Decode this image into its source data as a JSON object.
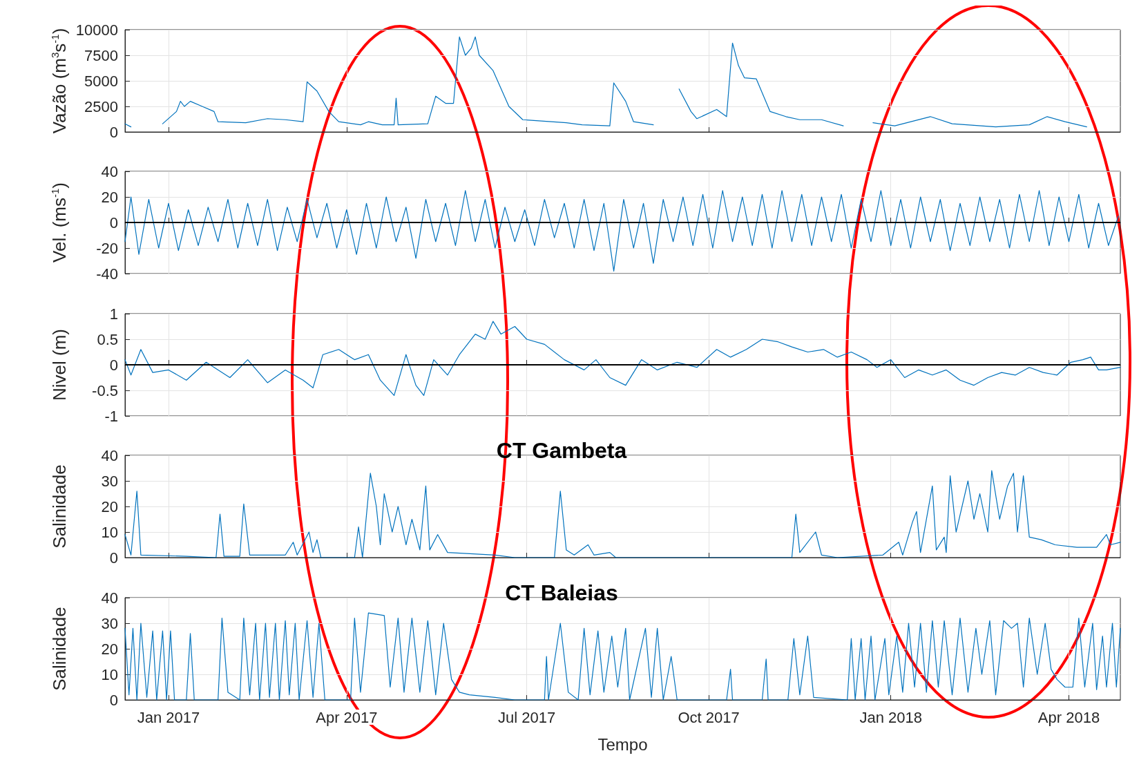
{
  "chart_data": [
    {
      "type": "line",
      "ylabel": "Vazão (m$^{3}$s$^{-1}$)",
      "xlim": [
        "2016-12-10",
        "2018-04-27"
      ],
      "xticks": [
        {
          "value": "2017-01-01",
          "label": null
        },
        {
          "value": "2017-04-01",
          "label": null
        },
        {
          "value": "2017-07-01",
          "label": null
        },
        {
          "value": "2017-10-01",
          "label": null
        },
        {
          "value": "2018-01-01",
          "label": null
        },
        {
          "value": "2018-04-01",
          "label": null
        }
      ],
      "ylim": [
        0,
        10000
      ],
      "yticks": [
        0,
        2500,
        5000,
        7500,
        10000
      ],
      "grid": true,
      "tick_labels": "y",
      "series": [
        {
          "color": "#0072bd",
          "x": [
            "2016-12-10",
            "2016-12-13",
            "2016-12-20",
            "2016-12-29",
            "2017-01-05",
            "2017-01-07",
            "2017-01-09",
            "2017-01-12",
            "2017-01-18",
            "2017-01-24",
            "2017-01-26",
            "2017-02-09",
            "2017-02-20",
            "2017-03-01",
            "2017-03-10",
            "2017-03-12",
            "2017-03-17",
            "2017-03-23",
            "2017-03-28",
            "2017-04-08",
            "2017-04-12",
            "2017-04-19",
            "2017-04-25",
            "2017-04-26",
            "2017-04-27",
            "2017-05-12",
            "2017-05-16",
            "2017-05-21",
            "2017-05-25",
            "2017-05-28",
            "2017-05-31",
            "2017-06-03",
            "2017-06-05",
            "2017-06-07",
            "2017-06-14",
            "2017-06-22",
            "2017-06-29",
            "2017-07-21",
            "2017-07-29",
            "2017-08-12",
            "2017-08-14",
            "2017-08-20",
            "2017-08-24",
            "2017-09-03",
            "2017-09-10",
            "2017-09-16",
            "2017-09-22",
            "2017-09-25",
            "2017-10-05",
            "2017-10-10",
            "2017-10-13",
            "2017-10-16",
            "2017-10-19",
            "2017-10-25",
            "2017-11-01",
            "2017-11-09",
            "2017-11-16",
            "2017-11-27",
            "2017-12-08",
            "2017-12-15",
            "2017-12-23",
            "2018-01-03",
            "2018-01-21",
            "2018-02-01",
            "2018-02-23",
            "2018-03-12",
            "2018-03-21",
            "2018-03-30",
            "2018-04-10"
          ],
          "values": [
            800,
            500,
            null,
            800,
            2000,
            3000,
            2500,
            3000,
            2500,
            2000,
            1000,
            900,
            1300,
            1200,
            1000,
            4900,
            4000,
            2000,
            1000,
            700,
            1000,
            700,
            700,
            3300,
            700,
            800,
            3500,
            2800,
            2800,
            9300,
            7500,
            8200,
            9300,
            7500,
            6000,
            2500,
            1200,
            900,
            700,
            600,
            4800,
            3000,
            1000,
            700,
            null,
            4200,
            2000,
            1300,
            2200,
            1500,
            8700,
            6500,
            5300,
            5200,
            2000,
            1500,
            1200,
            1200,
            600,
            null,
            900,
            600,
            1500,
            800,
            500,
            700,
            1500,
            1000,
            500
          ]
        }
      ]
    },
    {
      "type": "line",
      "ylabel": "Vel. (ms$^{-1}$)",
      "xlim": [
        "2016-12-10",
        "2018-04-27"
      ],
      "xticks": [
        {
          "value": "2017-01-01",
          "label": null
        },
        {
          "value": "2017-04-01",
          "label": null
        },
        {
          "value": "2017-07-01",
          "label": null
        },
        {
          "value": "2017-10-01",
          "label": null
        },
        {
          "value": "2018-01-01",
          "label": null
        },
        {
          "value": "2018-04-01",
          "label": null
        }
      ],
      "ylim": [
        -40,
        40
      ],
      "yticks": [
        -40,
        -20,
        0,
        20,
        40
      ],
      "grid": true,
      "tick_labels": "y",
      "ref_lines": [
        {
          "axis": "y",
          "value": 0,
          "color": "#000000"
        }
      ],
      "series": [
        {
          "color": "#0072bd",
          "x": [
            "2016-12-10",
            "2016-12-13",
            "2016-12-17",
            "2016-12-22",
            "2016-12-27",
            "2017-01-01",
            "2017-01-06",
            "2017-01-11",
            "2017-01-16",
            "2017-01-21",
            "2017-01-26",
            "2017-01-31",
            "2017-02-05",
            "2017-02-10",
            "2017-02-15",
            "2017-02-20",
            "2017-02-25",
            "2017-03-02",
            "2017-03-07",
            "2017-03-12",
            "2017-03-17",
            "2017-03-22",
            "2017-03-27",
            "2017-04-01",
            "2017-04-06",
            "2017-04-11",
            "2017-04-16",
            "2017-04-21",
            "2017-04-26",
            "2017-05-01",
            "2017-05-06",
            "2017-05-11",
            "2017-05-16",
            "2017-05-21",
            "2017-05-26",
            "2017-05-31",
            "2017-06-05",
            "2017-06-10",
            "2017-06-15",
            "2017-06-20",
            "2017-06-25",
            "2017-06-30",
            "2017-07-05",
            "2017-07-10",
            "2017-07-15",
            "2017-07-20",
            "2017-07-25",
            "2017-07-30",
            "2017-08-04",
            "2017-08-09",
            "2017-08-14",
            "2017-08-19",
            "2017-08-24",
            "2017-08-29",
            "2017-09-03",
            "2017-09-08",
            "2017-09-13",
            "2017-09-18",
            "2017-09-23",
            "2017-09-28",
            "2017-10-03",
            "2017-10-08",
            "2017-10-13",
            "2017-10-18",
            "2017-10-23",
            "2017-10-28",
            "2017-11-02",
            "2017-11-07",
            "2017-11-12",
            "2017-11-17",
            "2017-11-22",
            "2017-11-27",
            "2017-12-02",
            "2017-12-07",
            "2017-12-12",
            "2017-12-17",
            "2017-12-22",
            "2017-12-27",
            "2018-01-01",
            "2018-01-06",
            "2018-01-11",
            "2018-01-16",
            "2018-01-21",
            "2018-01-26",
            "2018-01-31",
            "2018-02-05",
            "2018-02-10",
            "2018-02-15",
            "2018-02-20",
            "2018-02-25",
            "2018-03-02",
            "2018-03-07",
            "2018-03-12",
            "2018-03-17",
            "2018-03-22",
            "2018-03-27",
            "2018-04-01",
            "2018-04-06",
            "2018-04-11",
            "2018-04-16",
            "2018-04-21",
            "2018-04-26"
          ],
          "values": [
            -15,
            20,
            -25,
            18,
            -20,
            15,
            -22,
            10,
            -18,
            12,
            -15,
            18,
            -20,
            15,
            -18,
            18,
            -22,
            12,
            -15,
            18,
            -12,
            15,
            -20,
            10,
            -25,
            15,
            -20,
            20,
            -15,
            12,
            -28,
            18,
            -15,
            15,
            -18,
            25,
            -15,
            18,
            -20,
            12,
            -15,
            10,
            -18,
            18,
            -12,
            15,
            -20,
            18,
            -22,
            15,
            -38,
            18,
            -20,
            15,
            -32,
            18,
            -15,
            20,
            -18,
            22,
            -20,
            25,
            -15,
            20,
            -18,
            22,
            -20,
            25,
            -15,
            22,
            -18,
            20,
            -15,
            22,
            -20,
            18,
            -15,
            25,
            -18,
            18,
            -20,
            20,
            -15,
            18,
            -22,
            15,
            -18,
            20,
            -15,
            18,
            -20,
            22,
            -15,
            25,
            -18,
            20,
            -15,
            22,
            -20,
            15,
            -18,
            5
          ]
        }
      ]
    },
    {
      "type": "line",
      "ylabel": "Nivel (m)",
      "xlim": [
        "2016-12-10",
        "2018-04-27"
      ],
      "xticks": [
        {
          "value": "2017-01-01",
          "label": null
        },
        {
          "value": "2017-04-01",
          "label": null
        },
        {
          "value": "2017-07-01",
          "label": null
        },
        {
          "value": "2017-10-01",
          "label": null
        },
        {
          "value": "2018-01-01",
          "label": null
        },
        {
          "value": "2018-04-01",
          "label": null
        }
      ],
      "ylim": [
        -1,
        1
      ],
      "yticks": [
        -1,
        -0.5,
        0,
        0.5,
        1
      ],
      "grid": true,
      "tick_labels": "y",
      "ref_lines": [
        {
          "axis": "y",
          "value": 0,
          "color": "#000000"
        }
      ],
      "series": [
        {
          "color": "#0072bd",
          "x": [
            "2016-12-10",
            "2016-12-13",
            "2016-12-18",
            "2016-12-24",
            "2017-01-01",
            "2017-01-10",
            "2017-01-20",
            "2017-02-01",
            "2017-02-10",
            "2017-02-20",
            "2017-03-01",
            "2017-03-10",
            "2017-03-15",
            "2017-03-20",
            "2017-03-28",
            "2017-04-05",
            "2017-04-12",
            "2017-04-18",
            "2017-04-25",
            "2017-05-01",
            "2017-05-06",
            "2017-05-10",
            "2017-05-15",
            "2017-05-22",
            "2017-05-28",
            "2017-06-05",
            "2017-06-10",
            "2017-06-14",
            "2017-06-18",
            "2017-06-25",
            "2017-07-01",
            "2017-07-10",
            "2017-07-20",
            "2017-07-30",
            "2017-08-05",
            "2017-08-12",
            "2017-08-20",
            "2017-08-28",
            "2017-09-05",
            "2017-09-15",
            "2017-09-25",
            "2017-10-05",
            "2017-10-12",
            "2017-10-20",
            "2017-10-28",
            "2017-11-05",
            "2017-11-12",
            "2017-11-20",
            "2017-11-28",
            "2017-12-05",
            "2017-12-12",
            "2017-12-20",
            "2017-12-25",
            "2018-01-01",
            "2018-01-08",
            "2018-01-15",
            "2018-01-22",
            "2018-01-29",
            "2018-02-05",
            "2018-02-12",
            "2018-02-19",
            "2018-02-26",
            "2018-03-05",
            "2018-03-12",
            "2018-03-19",
            "2018-03-26",
            "2018-04-02",
            "2018-04-08",
            "2018-04-12",
            "2018-04-16",
            "2018-04-20",
            "2018-04-27"
          ],
          "values": [
            0.1,
            -0.2,
            0.3,
            -0.15,
            -0.1,
            -0.3,
            0.05,
            -0.25,
            0.1,
            -0.35,
            -0.1,
            -0.3,
            -0.45,
            0.2,
            0.3,
            0.1,
            0.2,
            -0.3,
            -0.6,
            0.2,
            -0.4,
            -0.6,
            0.1,
            -0.2,
            0.2,
            0.6,
            0.5,
            0.85,
            0.6,
            0.75,
            0.5,
            0.4,
            0.1,
            -0.1,
            0.1,
            -0.25,
            -0.4,
            0.1,
            -0.1,
            0.05,
            -0.05,
            0.3,
            0.15,
            0.3,
            0.5,
            0.45,
            0.35,
            0.25,
            0.3,
            0.15,
            0.25,
            0.1,
            -0.05,
            0.1,
            -0.25,
            -0.1,
            -0.2,
            -0.1,
            -0.3,
            -0.4,
            -0.25,
            -0.15,
            -0.2,
            -0.05,
            -0.15,
            -0.2,
            0.05,
            0.1,
            0.15,
            -0.1,
            -0.1,
            -0.05
          ]
        }
      ]
    },
    {
      "type": "line",
      "title": "CT Gambeta",
      "ylabel": "Salinidade",
      "xlim": [
        "2016-12-10",
        "2018-04-27"
      ],
      "xticks": [
        {
          "value": "2017-01-01",
          "label": null
        },
        {
          "value": "2017-04-01",
          "label": null
        },
        {
          "value": "2017-07-01",
          "label": null
        },
        {
          "value": "2017-10-01",
          "label": null
        },
        {
          "value": "2018-01-01",
          "label": null
        },
        {
          "value": "2018-04-01",
          "label": null
        }
      ],
      "ylim": [
        0,
        40
      ],
      "yticks": [
        0,
        10,
        20,
        30,
        40
      ],
      "grid": true,
      "tick_labels": "y",
      "series": [
        {
          "color": "#0072bd",
          "x": [
            "2016-12-10",
            "2016-12-13",
            "2016-12-16",
            "2016-12-18",
            "2017-01-10",
            "2017-01-25",
            "2017-01-27",
            "2017-01-29",
            "2017-02-06",
            "2017-02-08",
            "2017-02-11",
            "2017-03-01",
            "2017-03-05",
            "2017-03-07",
            "2017-03-13",
            "2017-03-15",
            "2017-03-17",
            "2017-03-19",
            "2017-04-05",
            "2017-04-07",
            "2017-04-09",
            "2017-04-13",
            "2017-04-16",
            "2017-04-18",
            "2017-04-20",
            "2017-04-24",
            "2017-04-27",
            "2017-05-01",
            "2017-05-04",
            "2017-05-08",
            "2017-05-11",
            "2017-05-13",
            "2017-05-17",
            "2017-05-22",
            "2017-06-15",
            "2017-06-25",
            "2017-07-15",
            "2017-07-18",
            "2017-07-21",
            "2017-07-25",
            "2017-08-01",
            "2017-08-04",
            "2017-08-12",
            "2017-08-15",
            "2017-11-12",
            "2017-11-14",
            "2017-11-16",
            "2017-11-24",
            "2017-11-27",
            "2017-12-05",
            "2017-12-28",
            "2018-01-05",
            "2018-01-07",
            "2018-01-12",
            "2018-01-14",
            "2018-01-16",
            "2018-01-22",
            "2018-01-24",
            "2018-01-28",
            "2018-01-29",
            "2018-01-31",
            "2018-02-03",
            "2018-02-09",
            "2018-02-12",
            "2018-02-15",
            "2018-02-19",
            "2018-02-21",
            "2018-02-25",
            "2018-03-01",
            "2018-03-04",
            "2018-03-06",
            "2018-03-09",
            "2018-03-12",
            "2018-03-18",
            "2018-03-25",
            "2018-04-05",
            "2018-04-15",
            "2018-04-20",
            "2018-04-22",
            "2018-04-27"
          ],
          "values": [
            9,
            1,
            26,
            1,
            0.5,
            0,
            17,
            0.5,
            0.5,
            21,
            1,
            1,
            6,
            1,
            10,
            2,
            7,
            0,
            0,
            12,
            0,
            33,
            20,
            5,
            25,
            10,
            20,
            5,
            15,
            3,
            28,
            3,
            9,
            2,
            1,
            0,
            0,
            26,
            3,
            1,
            5,
            1,
            2,
            0,
            0,
            17,
            2,
            10,
            1,
            0,
            1,
            6,
            1,
            14,
            18,
            2,
            28,
            3,
            8,
            2,
            32,
            10,
            30,
            15,
            25,
            10,
            34,
            15,
            28,
            33,
            10,
            32,
            8,
            7,
            5,
            4,
            4,
            9,
            5,
            6
          ]
        }
      ]
    },
    {
      "type": "line",
      "title": "CT Baleias",
      "ylabel": "Salinidade",
      "xlabel": "Tempo",
      "xlim": [
        "2016-12-10",
        "2018-04-27"
      ],
      "xticks": [
        {
          "value": "2017-01-01",
          "label": "Jan 2017"
        },
        {
          "value": "2017-04-01",
          "label": "Apr 2017"
        },
        {
          "value": "2017-07-01",
          "label": "Jul 2017"
        },
        {
          "value": "2017-10-01",
          "label": "Oct 2017"
        },
        {
          "value": "2018-01-01",
          "label": "Jan 2018"
        },
        {
          "value": "2018-04-01",
          "label": "Apr 2018"
        }
      ],
      "ylim": [
        0,
        40
      ],
      "yticks": [
        0,
        10,
        20,
        30,
        40
      ],
      "grid": true,
      "series": [
        {
          "color": "#0072bd",
          "x": [
            "2016-12-10",
            "2016-12-12",
            "2016-12-14",
            "2016-12-16",
            "2016-12-18",
            "2016-12-21",
            "2016-12-24",
            "2016-12-26",
            "2016-12-29",
            "2016-12-31",
            "2017-01-02",
            "2017-01-04",
            "2017-01-10",
            "2017-01-12",
            "2017-01-14",
            "2017-01-26",
            "2017-01-28",
            "2017-01-31",
            "2017-02-06",
            "2017-02-08",
            "2017-02-11",
            "2017-02-14",
            "2017-02-16",
            "2017-02-19",
            "2017-02-21",
            "2017-02-24",
            "2017-02-26",
            "2017-03-01",
            "2017-03-03",
            "2017-03-06",
            "2017-03-08",
            "2017-03-12",
            "2017-03-15",
            "2017-03-18",
            "2017-03-21",
            "2017-04-03",
            "2017-04-05",
            "2017-04-08",
            "2017-04-12",
            "2017-04-20",
            "2017-04-23",
            "2017-04-27",
            "2017-04-30",
            "2017-05-04",
            "2017-05-08",
            "2017-05-12",
            "2017-05-16",
            "2017-05-20",
            "2017-05-24",
            "2017-05-28",
            "2017-06-02",
            "2017-06-15",
            "2017-06-25",
            "2017-07-10",
            "2017-07-11",
            "2017-07-12",
            "2017-07-18",
            "2017-07-22",
            "2017-07-27",
            "2017-07-30",
            "2017-08-02",
            "2017-08-06",
            "2017-08-09",
            "2017-08-13",
            "2017-08-16",
            "2017-08-20",
            "2017-08-22",
            "2017-08-30",
            "2017-09-02",
            "2017-09-05",
            "2017-09-08",
            "2017-09-12",
            "2017-09-15",
            "2017-10-10",
            "2017-10-12",
            "2017-10-13",
            "2017-10-28",
            "2017-10-30",
            "2017-10-31",
            "2017-11-10",
            "2017-11-13",
            "2017-11-16",
            "2017-11-20",
            "2017-11-23",
            "2017-12-10",
            "2017-12-12",
            "2017-12-14",
            "2017-12-17",
            "2017-12-19",
            "2017-12-22",
            "2017-12-24",
            "2017-12-29",
            "2017-12-31",
            "2018-01-04",
            "2018-01-07",
            "2018-01-10",
            "2018-01-13",
            "2018-01-16",
            "2018-01-19",
            "2018-01-22",
            "2018-01-25",
            "2018-01-28",
            "2018-02-01",
            "2018-02-05",
            "2018-02-09",
            "2018-02-13",
            "2018-02-16",
            "2018-02-20",
            "2018-02-23",
            "2018-02-27",
            "2018-03-03",
            "2018-03-06",
            "2018-03-09",
            "2018-03-12",
            "2018-03-16",
            "2018-03-20",
            "2018-03-23",
            "2018-03-26",
            "2018-03-30",
            "2018-04-03",
            "2018-04-06",
            "2018-04-09",
            "2018-04-13",
            "2018-04-15",
            "2018-04-18",
            "2018-04-20",
            "2018-04-23",
            "2018-04-25",
            "2018-04-27"
          ],
          "values": [
            28,
            2,
            28,
            0,
            30,
            1,
            27,
            0,
            27,
            0,
            27,
            0,
            0,
            26,
            0,
            0,
            32,
            3,
            0,
            32,
            2,
            30,
            0,
            30,
            1,
            30,
            0,
            31,
            2,
            30,
            0,
            31,
            1,
            30,
            0,
            0,
            32,
            3,
            34,
            33,
            5,
            32,
            3,
            32,
            3,
            31,
            2,
            30,
            8,
            3,
            2,
            1,
            0,
            0,
            17,
            0,
            30,
            3,
            0,
            28,
            2,
            27,
            3,
            25,
            5,
            28,
            0,
            28,
            1,
            28,
            0,
            17,
            0,
            0,
            12,
            0,
            0,
            16,
            0,
            0,
            24,
            2,
            25,
            1,
            0,
            24,
            0,
            24,
            0,
            25,
            0,
            24,
            2,
            25,
            3,
            30,
            5,
            30,
            3,
            31,
            5,
            31,
            2,
            32,
            3,
            28,
            10,
            31,
            2,
            31,
            28,
            30,
            5,
            32,
            10,
            30,
            12,
            8,
            5,
            5,
            32,
            5,
            30,
            4,
            25,
            5,
            30,
            5,
            28
          ]
        }
      ]
    }
  ]
}
